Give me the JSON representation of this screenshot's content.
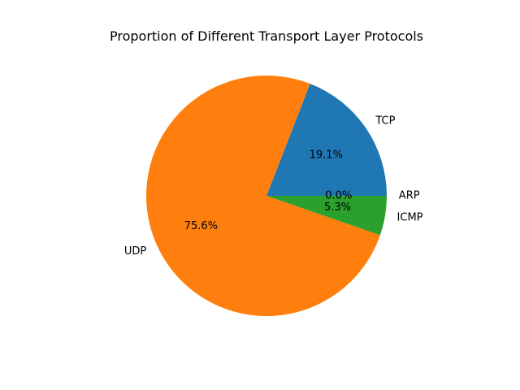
{
  "chart_data": {
    "type": "pie",
    "title": "Proportion of Different Transport Layer Protocols",
    "slices": [
      {
        "label": "TCP",
        "value": 19.1,
        "pct_label": "19.1%",
        "color": "#1f77b4"
      },
      {
        "label": "UDP",
        "value": 75.6,
        "pct_label": "75.6%",
        "color": "#ff7f0e"
      },
      {
        "label": "ICMP",
        "value": 5.3,
        "pct_label": "5.3%",
        "color": "#2ca02c"
      },
      {
        "label": "ARP",
        "value": 0.0,
        "pct_label": "0.0%",
        "color": "#d62728"
      }
    ],
    "start_angle_deg": 0,
    "direction": "counterclockwise",
    "legend": "none"
  }
}
